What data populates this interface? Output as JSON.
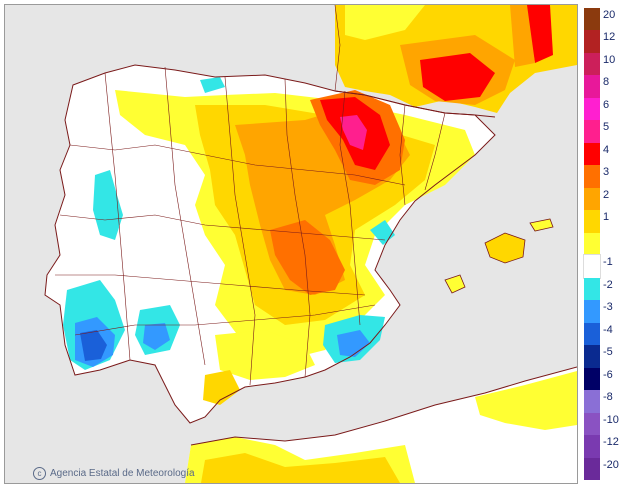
{
  "map": {
    "credit": "Agencia Estatal de Meteorología",
    "credit_icon": "copyright-icon",
    "colors": {
      "sea": "#e6e6e6",
      "land_neutral": "#ffffff",
      "border": "#7a1a1a",
      "y1": "#ffff33",
      "y2": "#ffd700",
      "y3": "#ffa500",
      "y4": "#ff7000",
      "r5": "#ff0000",
      "p6": "#ff1f8e",
      "b1": "#33e6e6",
      "b2": "#3399ff",
      "b3": "#1a60d9",
      "b4": "#0a2a90"
    }
  },
  "legend": {
    "entries": [
      {
        "label": "20",
        "color": "#8b3a0e"
      },
      {
        "label": "12",
        "color": "#b22222"
      },
      {
        "label": "10",
        "color": "#cc1f5a"
      },
      {
        "label": "8",
        "color": "#e8189a"
      },
      {
        "label": "6",
        "color": "#ff1fd0"
      },
      {
        "label": "5",
        "color": "#ff1f8e"
      },
      {
        "label": "4",
        "color": "#ff0000"
      },
      {
        "label": "3",
        "color": "#ff7000"
      },
      {
        "label": "2",
        "color": "#ffa500"
      },
      {
        "label": "1",
        "color": "#ffd700"
      },
      {
        "label": "",
        "color": "#ffff33"
      },
      {
        "label": "-1",
        "color": "#ffffff"
      },
      {
        "label": "-2",
        "color": "#33e6e6"
      },
      {
        "label": "-3",
        "color": "#3399ff"
      },
      {
        "label": "-4",
        "color": "#1a60d9"
      },
      {
        "label": "-5",
        "color": "#0a2a90"
      },
      {
        "label": "-6",
        "color": "#000066"
      },
      {
        "label": "-8",
        "color": "#8a6fd6"
      },
      {
        "label": "-10",
        "color": "#8a52c2"
      },
      {
        "label": "-12",
        "color": "#7a3ab0"
      },
      {
        "label": "-20",
        "color": "#6a2a9a"
      }
    ]
  }
}
